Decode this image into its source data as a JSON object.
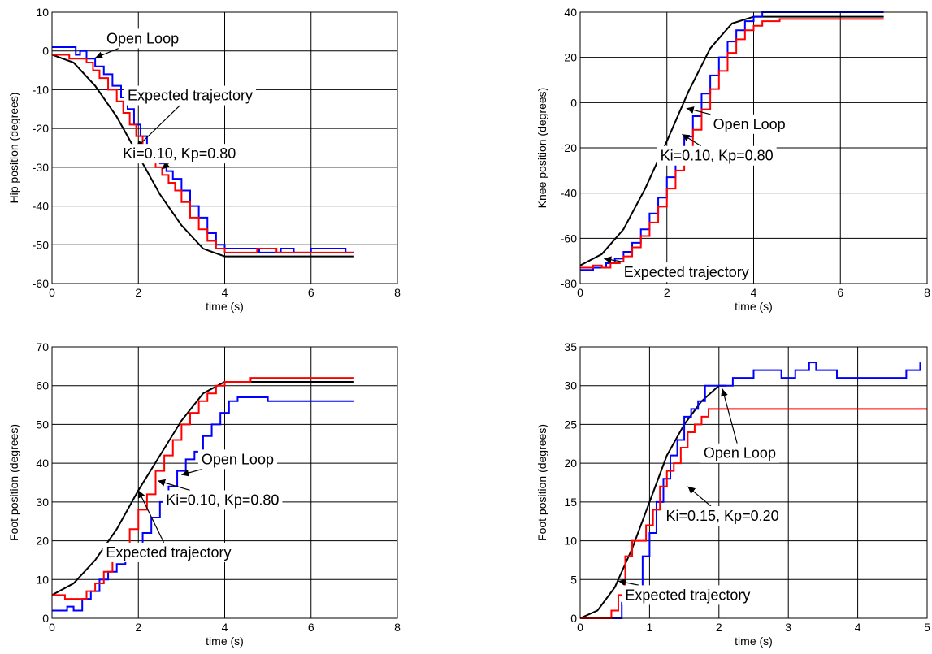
{
  "colors": {
    "expected": "#000000",
    "open_loop": "#0000ff",
    "controlled": "#ff0000",
    "grid": "#000000",
    "background": "#ffffff"
  },
  "chart_data": [
    {
      "type": "line",
      "xlabel": "time (s)",
      "ylabel": "Hip position (degrees)",
      "xlim": [
        0,
        8
      ],
      "ylim": [
        -60,
        10
      ],
      "xticks": [
        0,
        2,
        4,
        6,
        8
      ],
      "yticks": [
        -60,
        -50,
        -40,
        -30,
        -20,
        -10,
        0,
        10
      ],
      "xtick_labels": [
        "0",
        "2",
        "4",
        "6",
        "8"
      ],
      "ytick_labels": [
        "-60",
        "-50",
        "-40",
        "-30",
        "-20",
        "-10",
        "0",
        "10"
      ],
      "grid": true,
      "series": [
        {
          "key": "expected",
          "step": false,
          "x": [
            0,
            0.5,
            1,
            1.5,
            2,
            2.5,
            3,
            3.5,
            4,
            5,
            6,
            7
          ],
          "y": [
            -1,
            -3,
            -9,
            -17,
            -27,
            -37,
            -45,
            -51,
            -53,
            -53,
            -53,
            -53
          ]
        },
        {
          "key": "open_loop",
          "step": true,
          "x": [
            0,
            0.55,
            0.65,
            0.8,
            1.0,
            1.2,
            1.4,
            1.6,
            1.75,
            1.9,
            2.05,
            2.2,
            2.35,
            2.5,
            2.65,
            2.8,
            3.0,
            3.2,
            3.4,
            3.6,
            3.8,
            4.0,
            4.4,
            4.8,
            5.3,
            5.6,
            6.0,
            6.5,
            6.8,
            7.0
          ],
          "y": [
            1,
            -1,
            0,
            -2,
            -4,
            -6,
            -9,
            -12,
            -15,
            -19,
            -22,
            -25,
            -27,
            -29,
            -31,
            -33,
            -36,
            -40,
            -43,
            -47,
            -50,
            -51,
            -51,
            -52,
            -51,
            -52,
            -51,
            -51,
            -52,
            -52
          ]
        },
        {
          "key": "controlled",
          "step": true,
          "x": [
            0,
            0.4,
            0.8,
            0.95,
            1.1,
            1.3,
            1.5,
            1.65,
            1.8,
            1.95,
            2.1,
            2.25,
            2.4,
            2.55,
            2.7,
            2.85,
            3.0,
            3.2,
            3.4,
            3.6,
            3.8,
            4.0,
            4.6,
            4.75,
            5.2,
            7.0
          ],
          "y": [
            -1,
            -2,
            -3,
            -5,
            -7,
            -10,
            -13,
            -16,
            -19,
            -22,
            -25,
            -28,
            -30,
            -32,
            -34,
            -36,
            -39,
            -43,
            -46,
            -49,
            -51,
            -52,
            -52,
            -51,
            -52,
            -52
          ]
        }
      ],
      "annotations": [
        {
          "text": "Open Loop",
          "x": 2.1,
          "y": 3.2,
          "ax": 1.0,
          "ay": -1.8
        },
        {
          "text": "Expected trajectory",
          "x": 3.2,
          "y": -11.5,
          "ax": 1.95,
          "ay": -25
        },
        {
          "text": "Ki=0.10, Kp=0.80",
          "x": 2.95,
          "y": -26.5,
          "ax": 2.55,
          "ay": -30.5
        }
      ]
    },
    {
      "type": "line",
      "xlabel": "time (s)",
      "ylabel": "Knee position (degrees)",
      "xlim": [
        0,
        8
      ],
      "ylim": [
        -80,
        40
      ],
      "xticks": [
        0,
        2,
        4,
        6,
        8
      ],
      "yticks": [
        -80,
        -60,
        -40,
        -20,
        0,
        20,
        40
      ],
      "xtick_labels": [
        "0",
        "2",
        "4",
        "6",
        "8"
      ],
      "ytick_labels": [
        "-80",
        "-60",
        "-40",
        "-20",
        "0",
        "20",
        "40"
      ],
      "grid": true,
      "series": [
        {
          "key": "expected",
          "step": false,
          "x": [
            0,
            0.5,
            1,
            1.5,
            2,
            2.5,
            3,
            3.5,
            4,
            5,
            6,
            7
          ],
          "y": [
            -72,
            -67,
            -56,
            -38,
            -17,
            5,
            24,
            35,
            38,
            38,
            38,
            38
          ]
        },
        {
          "key": "open_loop",
          "step": true,
          "x": [
            0,
            0.3,
            0.6,
            0.8,
            1.0,
            1.2,
            1.4,
            1.6,
            1.8,
            2.0,
            2.2,
            2.4,
            2.6,
            2.8,
            3.0,
            3.2,
            3.4,
            3.6,
            3.8,
            4.0,
            4.2,
            7.0
          ],
          "y": [
            -74,
            -73,
            -71,
            -69,
            -66,
            -62,
            -56,
            -49,
            -42,
            -33,
            -25,
            -15,
            -6,
            4,
            12,
            20,
            27,
            32,
            36,
            38,
            40,
            40
          ]
        },
        {
          "key": "controlled",
          "step": true,
          "x": [
            0,
            0.3,
            0.5,
            0.7,
            1.0,
            1.2,
            1.4,
            1.6,
            1.8,
            2.0,
            2.2,
            2.4,
            2.6,
            2.8,
            3.0,
            3.2,
            3.4,
            3.6,
            3.8,
            4.0,
            4.2,
            4.6,
            6.0,
            7.0
          ],
          "y": [
            -73,
            -72,
            -73,
            -71,
            -68,
            -64,
            -59,
            -53,
            -46,
            -38,
            -30,
            -21,
            -12,
            -3,
            6,
            14,
            22,
            28,
            32,
            34,
            36,
            37,
            37,
            37
          ]
        }
      ],
      "annotations": [
        {
          "text": "Open Loop",
          "x": 3.9,
          "y": -9.5,
          "ax": 2.45,
          "ay": -2.5
        },
        {
          "text": "Ki=0.10, Kp=0.80",
          "x": 3.15,
          "y": -23.5,
          "ax": 2.35,
          "ay": -14
        },
        {
          "text": "Expected trajectory",
          "x": 2.45,
          "y": -75,
          "ax": 0.55,
          "ay": -69
        }
      ]
    },
    {
      "type": "line",
      "xlabel": "time (s)",
      "ylabel": "Foot position (degrees)",
      "xlim": [
        0,
        8
      ],
      "ylim": [
        0,
        70
      ],
      "xticks": [
        0,
        2,
        4,
        6,
        8
      ],
      "yticks": [
        0,
        10,
        20,
        30,
        40,
        50,
        60,
        70
      ],
      "xtick_labels": [
        "0",
        "2",
        "4",
        "6",
        "8"
      ],
      "ytick_labels": [
        "0",
        "10",
        "20",
        "30",
        "40",
        "50",
        "60",
        "70"
      ],
      "grid": true,
      "series": [
        {
          "key": "expected",
          "step": false,
          "x": [
            0,
            0.5,
            1,
            1.5,
            2,
            2.5,
            3,
            3.5,
            4,
            5,
            6,
            7
          ],
          "y": [
            6,
            9,
            15,
            23,
            33,
            42,
            51,
            58,
            61,
            61,
            61,
            61
          ]
        },
        {
          "key": "open_loop",
          "step": true,
          "x": [
            0,
            0.35,
            0.5,
            0.7,
            0.9,
            1.1,
            1.3,
            1.5,
            1.7,
            1.9,
            2.1,
            2.3,
            2.5,
            2.7,
            2.9,
            3.1,
            3.3,
            3.5,
            3.7,
            3.9,
            4.1,
            4.3,
            5.0,
            7.0
          ],
          "y": [
            2,
            3,
            2,
            5,
            7,
            10,
            12,
            14,
            17,
            19,
            22,
            26,
            30,
            34,
            38,
            41,
            43,
            47,
            50,
            53,
            56,
            57,
            56,
            56
          ]
        },
        {
          "key": "controlled",
          "step": true,
          "x": [
            0,
            0.3,
            0.8,
            1.0,
            1.2,
            1.4,
            1.6,
            1.8,
            2.0,
            2.2,
            2.4,
            2.6,
            2.8,
            3.0,
            3.2,
            3.4,
            3.6,
            3.8,
            4.0,
            4.6,
            7.0
          ],
          "y": [
            6,
            5,
            7,
            9,
            12,
            15,
            19,
            23,
            28,
            32,
            38,
            42,
            46,
            50,
            53,
            56,
            58,
            60,
            61,
            62,
            62
          ]
        }
      ],
      "annotations": [
        {
          "text": "Open Loop",
          "x": 4.3,
          "y": 41,
          "ax": 3.0,
          "ay": 37
        },
        {
          "text": "Ki=0.10, Kp=0.80",
          "x": 3.95,
          "y": 30.5,
          "ax": 2.45,
          "ay": 35.5
        },
        {
          "text": "Expected trajectory",
          "x": 2.7,
          "y": 17,
          "ax": 2.0,
          "ay": 33
        }
      ]
    },
    {
      "type": "line",
      "xlabel": "time (s)",
      "ylabel": "Foot position (degrees)",
      "xlim": [
        0,
        5
      ],
      "ylim": [
        0,
        35
      ],
      "xticks": [
        0,
        1,
        2,
        3,
        4,
        5
      ],
      "yticks": [
        0,
        5,
        10,
        15,
        20,
        25,
        30,
        35
      ],
      "xtick_labels": [
        "0",
        "1",
        "2",
        "3",
        "4",
        "5"
      ],
      "ytick_labels": [
        "0",
        "5",
        "10",
        "15",
        "20",
        "25",
        "30",
        "35"
      ],
      "grid": true,
      "series": [
        {
          "key": "expected",
          "step": false,
          "x": [
            0,
            0.25,
            0.5,
            0.75,
            1.0,
            1.25,
            1.5,
            1.75,
            2.0,
            2.1
          ],
          "y": [
            0,
            1,
            4,
            9,
            15,
            21,
            25,
            28,
            30,
            30
          ]
        },
        {
          "key": "open_loop",
          "step": true,
          "x": [
            0,
            0.5,
            0.6,
            0.7,
            0.8,
            0.9,
            1.0,
            1.1,
            1.2,
            1.3,
            1.4,
            1.5,
            1.6,
            1.7,
            1.8,
            1.9,
            2.0,
            2.2,
            2.5,
            2.9,
            3.1,
            3.3,
            3.4,
            3.7,
            4.0,
            4.3,
            4.7,
            4.9
          ],
          "y": [
            0,
            0,
            2,
            4,
            4,
            8,
            11,
            15,
            18,
            21,
            23,
            26,
            27,
            28,
            30,
            30,
            30,
            31,
            32,
            31,
            32,
            33,
            32,
            31,
            31,
            31,
            32,
            33
          ]
        },
        {
          "key": "controlled",
          "step": true,
          "x": [
            0,
            0.45,
            0.55,
            0.65,
            0.75,
            0.85,
            0.95,
            1.05,
            1.15,
            1.25,
            1.35,
            1.45,
            1.55,
            1.65,
            1.75,
            1.85,
            1.95,
            5.0
          ],
          "y": [
            0,
            1,
            3,
            8,
            10,
            10,
            12,
            14,
            17,
            19,
            20,
            22,
            24,
            25,
            26,
            27,
            27,
            27
          ]
        }
      ],
      "annotations": [
        {
          "text": "Open Loop",
          "x": 2.3,
          "y": 21.3,
          "ax": 2.05,
          "ay": 29.6
        },
        {
          "text": "Ki=0.15, Kp=0.20",
          "x": 2.05,
          "y": 13.2,
          "ax": 1.55,
          "ay": 17
        },
        {
          "text": "Expected trajectory",
          "x": 1.55,
          "y": 3,
          "ax": 0.55,
          "ay": 4.8
        }
      ]
    }
  ]
}
